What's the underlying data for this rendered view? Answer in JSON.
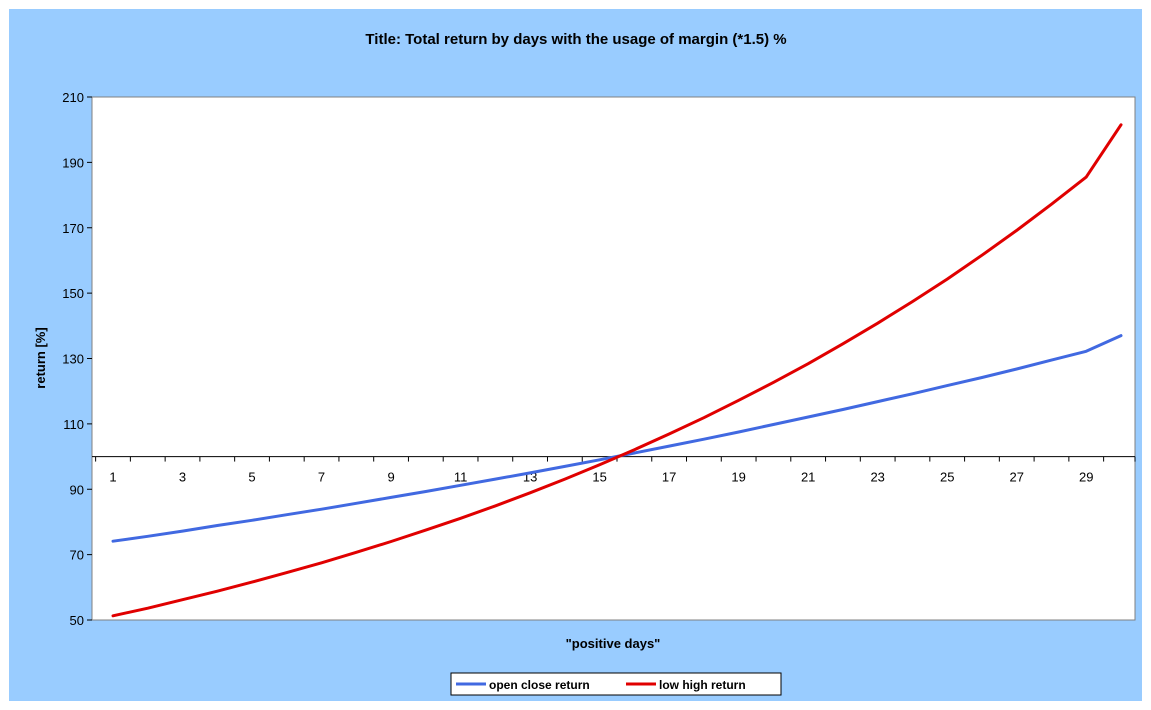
{
  "colors": {
    "chart_area_bg": "#99ccff",
    "plot_area_bg": "#ffffff",
    "series_open_close": "#4169e1",
    "series_low_high": "#e00000"
  },
  "chart_data": {
    "type": "line",
    "title": "Title: Total return by days with the usage of margin (*1.5) %",
    "xlabel": "\"positive days\"",
    "ylabel": "return [%]",
    "x": [
      1,
      2,
      3,
      4,
      5,
      6,
      7,
      8,
      9,
      10,
      11,
      12,
      13,
      14,
      15,
      16,
      17,
      18,
      19,
      20,
      21,
      22,
      23,
      24,
      25,
      26,
      27,
      28,
      29,
      30
    ],
    "x_tick_labels": [
      "1",
      "3",
      "5",
      "7",
      "9",
      "11",
      "13",
      "15",
      "17",
      "19",
      "21",
      "23",
      "25",
      "27",
      "29"
    ],
    "y_tick_labels": [
      "50",
      "70",
      "90",
      "110",
      "130",
      "150",
      "170",
      "190",
      "210"
    ],
    "ylim": [
      50,
      210
    ],
    "x_axis_crosses_at": 100,
    "grid": false,
    "legend_position": "bottom",
    "series": [
      {
        "name": "open close return",
        "color": "#4169e1",
        "values": [
          74.1,
          75.6,
          77.2,
          78.9,
          80.5,
          82.2,
          83.9,
          85.7,
          87.5,
          89.3,
          91.2,
          93.1,
          95.0,
          97.0,
          99.0,
          101.1,
          103.2,
          105.3,
          107.5,
          109.8,
          112.1,
          114.4,
          116.8,
          119.2,
          121.7,
          124.2,
          126.8,
          129.5,
          132.2,
          137.0
        ]
      },
      {
        "name": "low high return",
        "color": "#e00000",
        "values": [
          51.3,
          53.6,
          56.2,
          58.8,
          61.6,
          64.5,
          67.5,
          70.7,
          74.0,
          77.5,
          81.1,
          84.9,
          88.9,
          93.1,
          97.5,
          102.1,
          106.9,
          111.9,
          117.2,
          122.7,
          128.4,
          134.5,
          140.8,
          147.4,
          154.3,
          161.6,
          169.2,
          177.2,
          185.5,
          201.5
        ]
      }
    ]
  }
}
